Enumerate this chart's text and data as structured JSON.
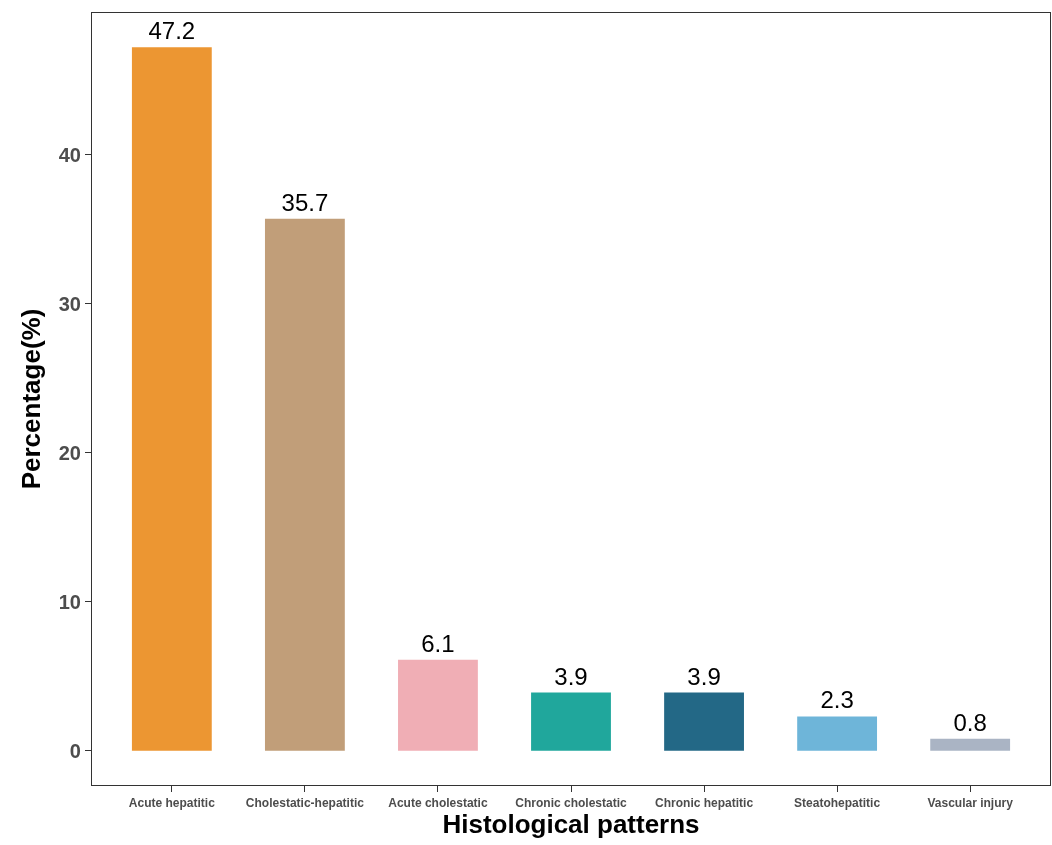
{
  "chart_data": {
    "type": "bar",
    "xlabel": "Histological patterns",
    "ylabel": "Percentage(%)",
    "categories": [
      "Acute hepatitic",
      "Cholestatic-hepatitic",
      "Acute cholestatic",
      "Chronic cholestatic",
      "Chronic hepatitic",
      "Steatohepatitic",
      "Vascular injury"
    ],
    "values": [
      47.2,
      35.7,
      6.1,
      3.9,
      3.9,
      2.3,
      0.8
    ],
    "colors": [
      "#ec9632",
      "#c19e79",
      "#f0aeb5",
      "#20a79c",
      "#236886",
      "#6eb5d9",
      "#aab4c4"
    ],
    "ylim": [
      -2.3,
      49.5
    ],
    "yticks": [
      0,
      10,
      20,
      30,
      40
    ],
    "grid": false,
    "data_labels": true
  }
}
